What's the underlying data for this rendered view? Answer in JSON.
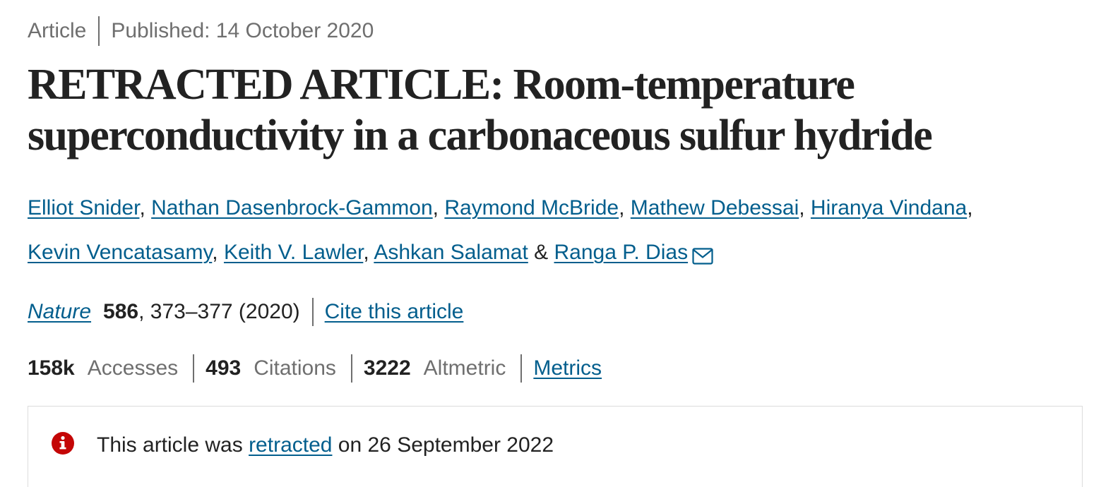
{
  "header": {
    "type": "Article",
    "published": "Published: 14 October 2020"
  },
  "title": {
    "line1": "RETRACTED ARTICLE: Room-temperature",
    "line2": "superconductivity in a carbonaceous sulfur hydride"
  },
  "authors": [
    "Elliot Snider",
    "Nathan Dasenbrock-Gammon",
    "Raymond McBride",
    "Mathew Debessai",
    "Hiranya Vindana",
    "Kevin Vencatasamy",
    "Keith V. Lawler",
    "Ashkan Salamat",
    "Ranga P. Dias"
  ],
  "author_separators": {
    "comma": ",",
    "ampersand": "&"
  },
  "journal": {
    "name": "Nature",
    "volume": "586",
    "pages_year": ", 373–377 (2020)",
    "cite_label": "Cite this article"
  },
  "metrics": {
    "accesses_value": "158k",
    "accesses_label": "Accesses",
    "citations_value": "493",
    "citations_label": "Citations",
    "altmetric_value": "3222",
    "altmetric_label": "Altmetric",
    "metrics_link": "Metrics"
  },
  "notice": {
    "prefix": "This article was",
    "link": "retracted",
    "suffix": "on 26 September 2022"
  },
  "colors": {
    "link": "#025e8d",
    "alert": "#c40606",
    "muted": "#6f6f6f"
  }
}
